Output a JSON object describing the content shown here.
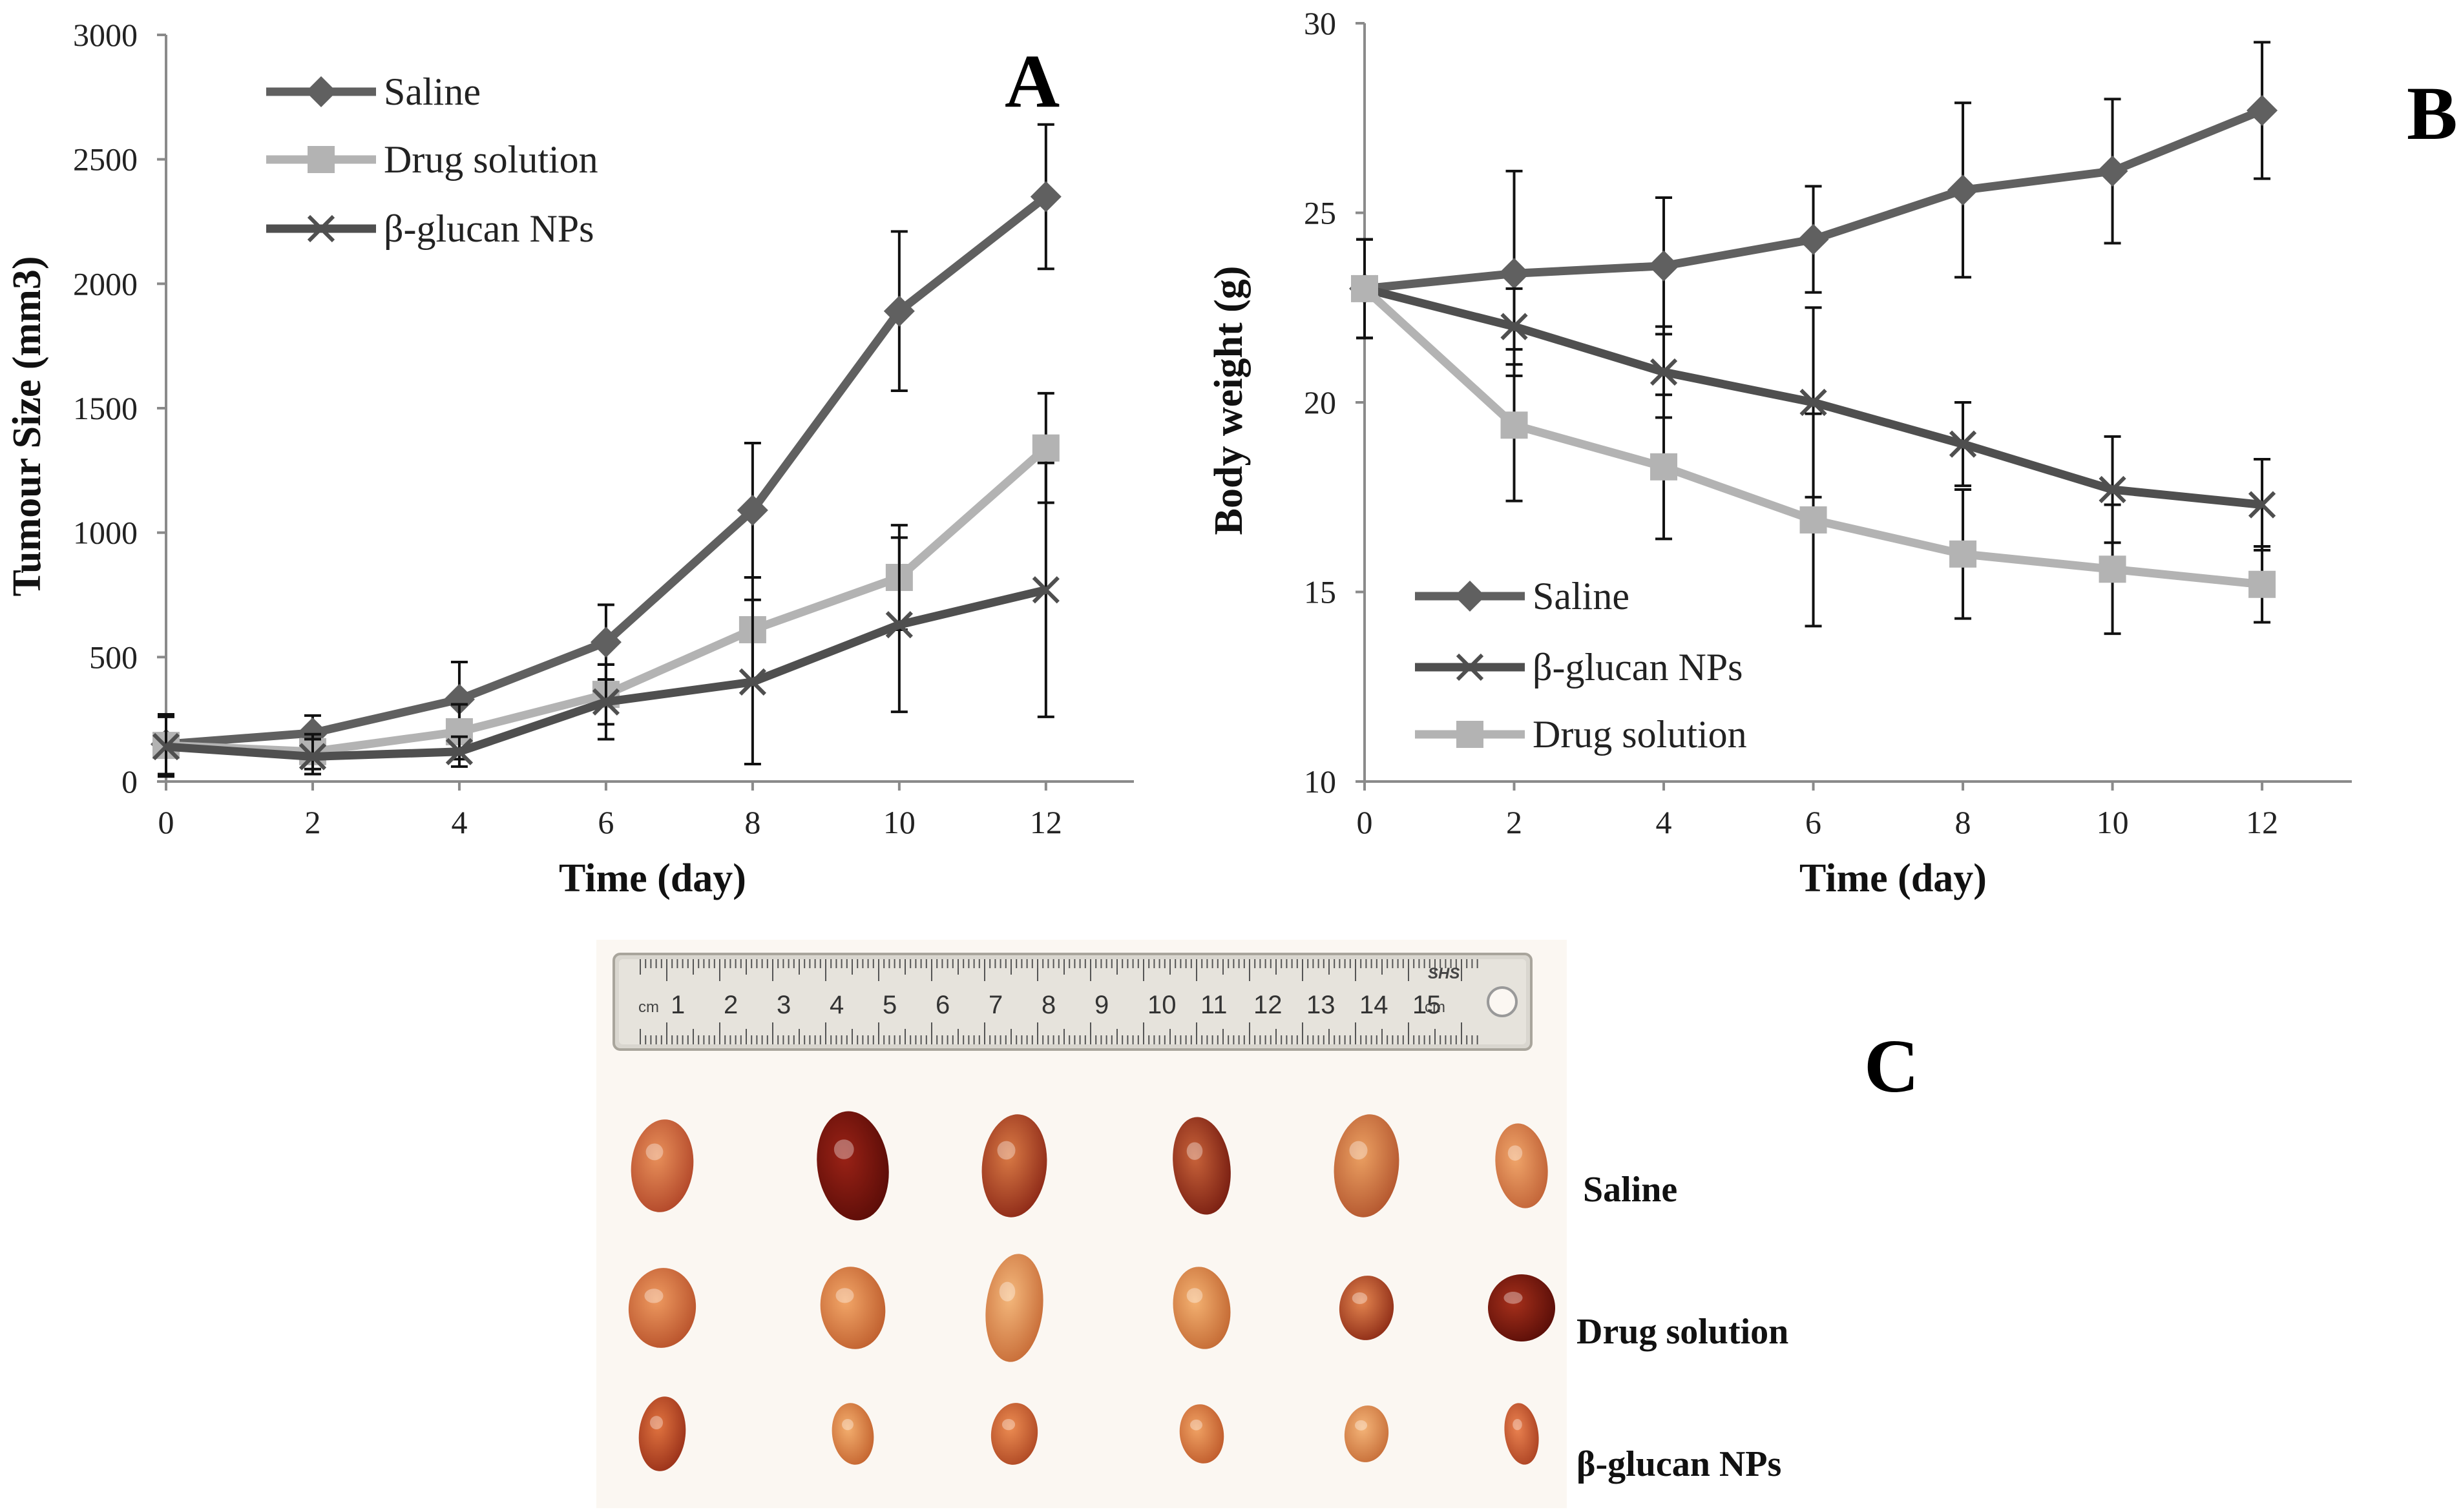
{
  "colors": {
    "saline": "#606060",
    "drug": "#b3b3b3",
    "nps": "#4f4f4f",
    "errorbar": "#111111",
    "photo_bg": "#fbf7f2"
  },
  "chart_data": [
    {
      "id": "A",
      "panel_label": "A",
      "type": "line",
      "xlabel": "Time (day)",
      "ylabel": "Tumour Size (mm3)",
      "x": [
        0,
        2,
        4,
        6,
        8,
        10,
        12
      ],
      "xticks": [
        "0",
        "2",
        "4",
        "6",
        "8",
        "10",
        "12"
      ],
      "xlim": [
        0,
        13.2
      ],
      "ylim": [
        0,
        3000
      ],
      "yticks": [
        "0",
        "500",
        "1000",
        "1500",
        "2000",
        "2500",
        "3000"
      ],
      "legend_position": "top-left",
      "legend_order": [
        0,
        1,
        2
      ],
      "series": [
        {
          "name": "Saline",
          "key": "saline",
          "marker": "diamond",
          "values": [
            150,
            195,
            330,
            560,
            1090,
            1890,
            2350
          ],
          "errors": [
            120,
            70,
            150,
            150,
            270,
            320,
            290
          ]
        },
        {
          "name": "Drug solution",
          "key": "drug",
          "marker": "square",
          "values": [
            145,
            120,
            200,
            350,
            610,
            820,
            1340
          ],
          "errors": [
            120,
            70,
            110,
            120,
            210,
            210,
            220
          ]
        },
        {
          "name": "β-glucan NPs",
          "key": "nps",
          "marker": "x",
          "values": [
            140,
            100,
            120,
            320,
            400,
            630,
            770
          ],
          "errors": [
            120,
            70,
            60,
            150,
            330,
            350,
            510
          ]
        }
      ]
    },
    {
      "id": "B",
      "panel_label": "B",
      "type": "line",
      "xlabel": "Time (day)",
      "ylabel": "Body weight (g)",
      "x": [
        0,
        2,
        4,
        6,
        8,
        10,
        12
      ],
      "xticks": [
        "0",
        "2",
        "4",
        "6",
        "8",
        "10",
        "12"
      ],
      "xlim": [
        0,
        13.2
      ],
      "ylim": [
        10,
        30
      ],
      "yticks": [
        "10",
        "15",
        "20",
        "25",
        "30"
      ],
      "legend_position": "bottom-left",
      "legend_order": [
        0,
        1,
        2
      ],
      "series": [
        {
          "name": "Saline",
          "key": "saline",
          "marker": "diamond",
          "values": [
            23.0,
            23.4,
            23.6,
            24.3,
            25.6,
            26.1,
            27.7
          ],
          "errors": [
            1.3,
            2.7,
            1.8,
            1.4,
            2.3,
            1.9,
            1.8
          ]
        },
        {
          "name": "β-glucan NPs",
          "key": "nps",
          "marker": "x",
          "values": [
            23.0,
            22.0,
            20.8,
            20.0,
            18.9,
            17.7,
            17.3
          ],
          "errors": [
            1.3,
            1.0,
            1.2,
            2.5,
            1.1,
            1.4,
            1.2
          ]
        },
        {
          "name": "Drug solution",
          "key": "drug",
          "marker": "square",
          "values": [
            23.0,
            19.4,
            18.3,
            16.9,
            16.0,
            15.6,
            15.2
          ],
          "errors": [
            1.3,
            2.0,
            1.9,
            2.8,
            1.7,
            1.7,
            1.0
          ]
        }
      ]
    }
  ],
  "photo": {
    "panel_label": "C",
    "ruler": {
      "unit": "cm",
      "unit_right": "cm",
      "numbers": [
        "1",
        "2",
        "3",
        "4",
        "5",
        "6",
        "7",
        "8",
        "9",
        "10",
        "11",
        "12",
        "13",
        "14",
        "15"
      ],
      "brand": "SHS"
    },
    "rows": [
      {
        "label": "Saline",
        "count": 6,
        "tint": "dark"
      },
      {
        "label": "Drug solution",
        "count": 6,
        "tint": "medium"
      },
      {
        "label": "β-glucan NPs",
        "count": 6,
        "tint": "light"
      }
    ]
  }
}
